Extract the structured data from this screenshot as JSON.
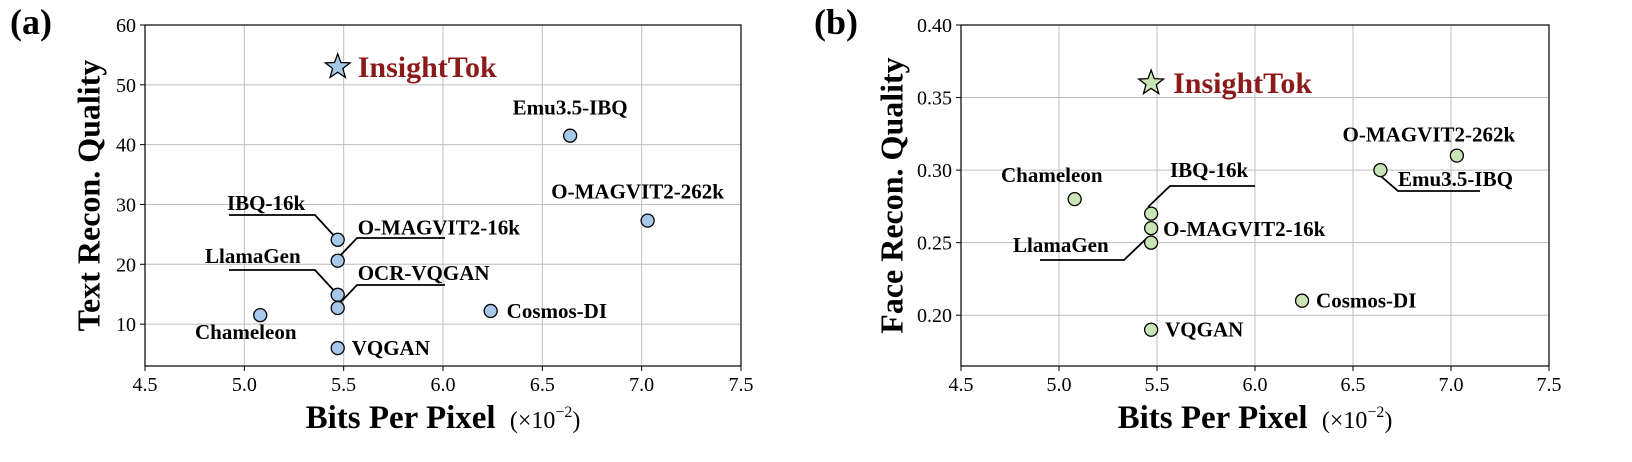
{
  "colors": {
    "highlight_text": "#8b1a1a",
    "panel_a_marker": "#a8c8ea",
    "panel_b_marker": "#c9e5b5",
    "grid": "#bdbdbd"
  },
  "chart_data": [
    {
      "type": "scatter",
      "panel_label": "(a)",
      "xlabel": "Bits Per Pixel",
      "xlabel_unit": "(×10",
      "xlabel_unit_exp": "−2",
      "xlabel_unit_close": ")",
      "ylabel": "Text Recon. Quality",
      "xlim": [
        4.5,
        7.5
      ],
      "ylim": [
        3,
        60
      ],
      "xticks": [
        "4.5",
        "5.0",
        "5.5",
        "6.0",
        "6.5",
        "7.0",
        "7.5"
      ],
      "yticks": [
        "10",
        "20",
        "30",
        "40",
        "50",
        "60"
      ],
      "grid": true,
      "marker_color": "#a8c8ea",
      "points": [
        {
          "label": "InsightTok",
          "x": 5.47,
          "y": 53.0,
          "marker": "star",
          "highlight": true
        },
        {
          "label": "Emu3.5-IBQ",
          "x": 6.64,
          "y": 41.5
        },
        {
          "label": "O-MAGVIT2-262k",
          "x": 7.03,
          "y": 27.3
        },
        {
          "label": "IBQ-16k",
          "x": 5.47,
          "y": 24.1
        },
        {
          "label": "O-MAGVIT2-16k",
          "x": 5.47,
          "y": 20.6
        },
        {
          "label": "LlamaGen",
          "x": 5.47,
          "y": 14.9
        },
        {
          "label": "OCR-VQGAN",
          "x": 5.47,
          "y": 12.7
        },
        {
          "label": "Cosmos-DI",
          "x": 6.24,
          "y": 12.2
        },
        {
          "label": "Chameleon",
          "x": 5.08,
          "y": 11.5
        },
        {
          "label": "VQGAN",
          "x": 5.47,
          "y": 6.0
        }
      ]
    },
    {
      "type": "scatter",
      "panel_label": "(b)",
      "xlabel": "Bits Per Pixel",
      "xlabel_unit": "(×10",
      "xlabel_unit_exp": "−2",
      "xlabel_unit_close": ")",
      "ylabel": "Face Recon. Quality",
      "xlim": [
        4.5,
        7.5
      ],
      "ylim": [
        0.165,
        0.4
      ],
      "xticks": [
        "4.5",
        "5.0",
        "5.5",
        "6.0",
        "6.5",
        "7.0",
        "7.5"
      ],
      "yticks": [
        "0.20",
        "0.25",
        "0.30",
        "0.35",
        "0.40"
      ],
      "grid": true,
      "marker_color": "#c9e5b5",
      "points": [
        {
          "label": "InsightTok",
          "x": 5.47,
          "y": 0.36,
          "marker": "star",
          "highlight": true
        },
        {
          "label": "O-MAGVIT2-262k",
          "x": 7.03,
          "y": 0.31
        },
        {
          "label": "Emu3.5-IBQ",
          "x": 6.64,
          "y": 0.3
        },
        {
          "label": "Chameleon",
          "x": 5.08,
          "y": 0.28
        },
        {
          "label": "IBQ-16k",
          "x": 5.47,
          "y": 0.27
        },
        {
          "label": "O-MAGVIT2-16k",
          "x": 5.47,
          "y": 0.26
        },
        {
          "label": "LlamaGen",
          "x": 5.47,
          "y": 0.25
        },
        {
          "label": "Cosmos-DI",
          "x": 6.24,
          "y": 0.21
        },
        {
          "label": "VQGAN",
          "x": 5.47,
          "y": 0.19
        }
      ]
    }
  ]
}
